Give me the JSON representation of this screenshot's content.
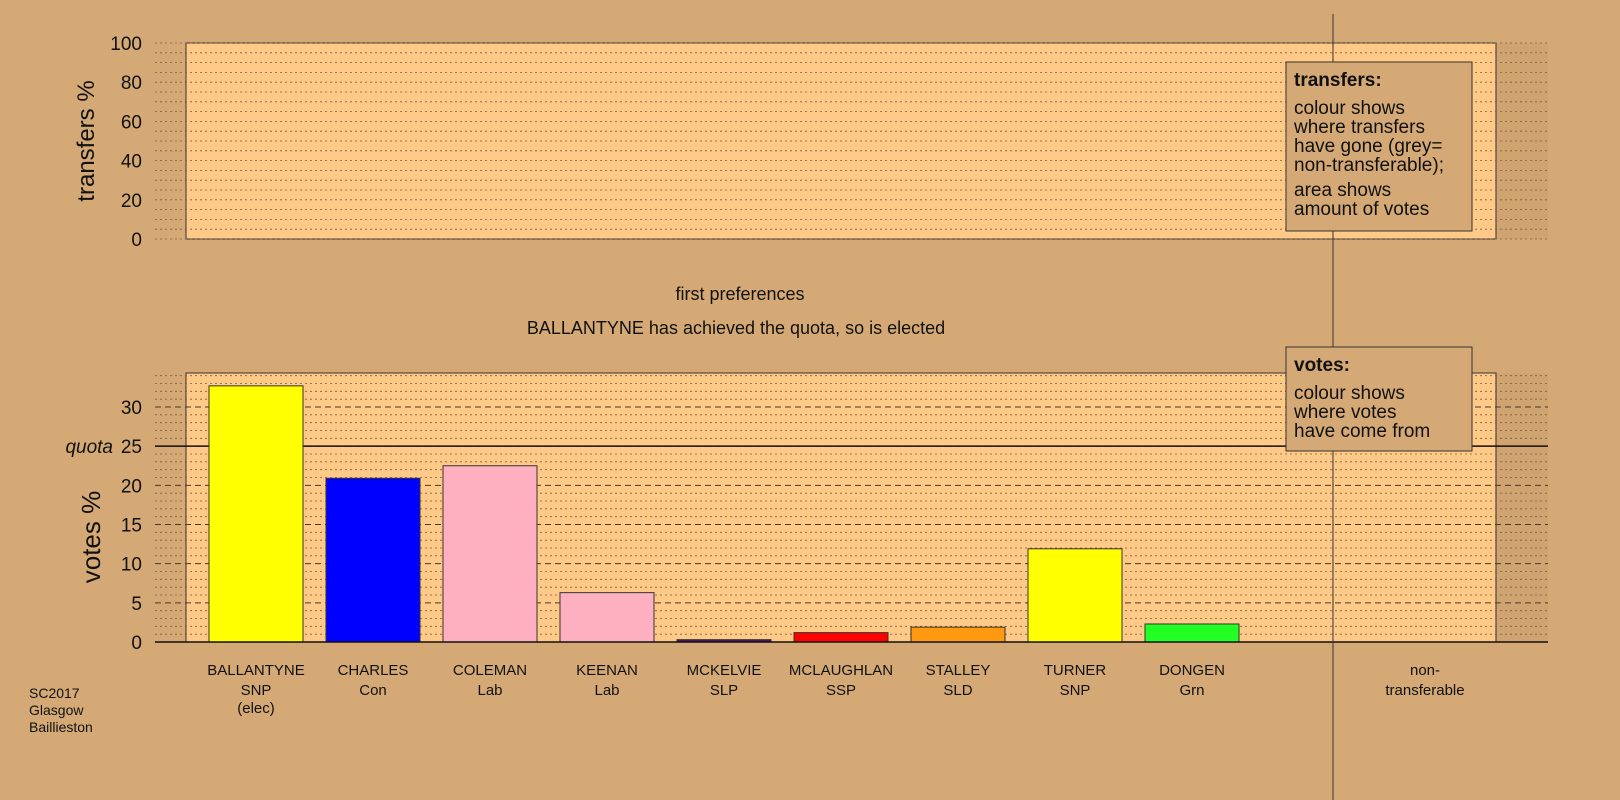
{
  "chart_data": [
    {
      "type": "bar",
      "panel": "transfers",
      "ylabel": "transfers %",
      "ylim": [
        0,
        100
      ],
      "yticks": [
        0,
        20,
        40,
        60,
        80,
        100
      ],
      "grid": true,
      "values": [],
      "legend": {
        "title": "transfers:",
        "lines": [
          "colour shows",
          "where transfers",
          "have gone (grey=",
          "non-transferable);"
        ],
        "lines2": [
          "area shows",
          "amount of votes"
        ],
        "placement": "top-right"
      }
    },
    {
      "type": "bar",
      "panel": "votes",
      "title": "first preferences",
      "subtitle": "BALLANTYNE has achieved the quota, so is elected",
      "ylabel": "votes %",
      "ylim": [
        0,
        34
      ],
      "yticks": [
        0,
        5,
        10,
        15,
        20,
        25,
        30
      ],
      "quota": 25,
      "quota_label": "quota",
      "grid": true,
      "categories": [
        {
          "name": "BALLANTYNE",
          "party": "SNP",
          "note": "(elec)",
          "value": 32.7,
          "color": "#ffff00"
        },
        {
          "name": "CHARLES",
          "party": "Con",
          "note": "",
          "value": 20.9,
          "color": "#0000ff"
        },
        {
          "name": "COLEMAN",
          "party": "Lab",
          "note": "",
          "value": 22.5,
          "color": "#ffb0c0"
        },
        {
          "name": "KEENAN",
          "party": "Lab",
          "note": "",
          "value": 6.3,
          "color": "#ffb0c0"
        },
        {
          "name": "MCKELVIE",
          "party": "SLP",
          "note": "",
          "value": 0.3,
          "color": "#4b0f6b"
        },
        {
          "name": "MCLAUGHLAN",
          "party": "SSP",
          "note": "",
          "value": 1.2,
          "color": "#ff0000"
        },
        {
          "name": "STALLEY",
          "party": "SLD",
          "note": "",
          "value": 1.9,
          "color": "#ff9a10"
        },
        {
          "name": "TURNER",
          "party": "SNP",
          "note": "",
          "value": 11.9,
          "color": "#ffff00"
        },
        {
          "name": "DONGEN",
          "party": "Grn",
          "note": "",
          "value": 2.3,
          "color": "#22ff22"
        }
      ],
      "nontransferable": {
        "line1": "non-",
        "line2": "transferable",
        "value": 0
      },
      "legend": {
        "title": "votes:",
        "lines": [
          "colour shows",
          "where votes",
          "have come from"
        ],
        "placement": "top-right"
      }
    }
  ],
  "footer": [
    "SC2017",
    "Glasgow",
    "Baillieston"
  ],
  "colors": {
    "background": "#d4a975",
    "plot": "#ffc987"
  }
}
